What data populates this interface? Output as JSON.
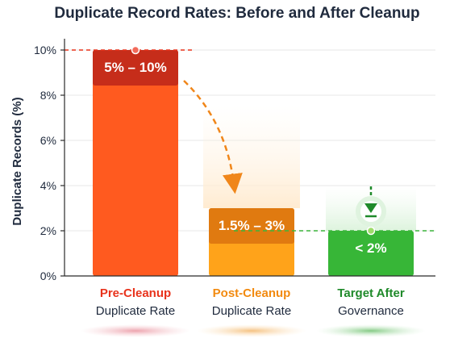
{
  "chart_data": {
    "type": "bar",
    "title": "Duplicate Record Rates: Before and After Cleanup",
    "ylabel": "Duplicate Records (%)",
    "ylim": [
      0,
      10
    ],
    "yticks": [
      0,
      2,
      4,
      6,
      8,
      10
    ],
    "ytick_labels": [
      "0%",
      "2%",
      "4%",
      "6%",
      "8%",
      "10%"
    ],
    "grid": true,
    "bars": [
      {
        "category_line1": "Pre-Cleanup",
        "category_line2": "Duplicate Rate",
        "low": 5,
        "high": 10,
        "range_label": "5% – 10%",
        "color_top": "#c62d1a",
        "color_body": "#ff5a1f",
        "label_color": "#e8331c",
        "has_low_band": true
      },
      {
        "category_line1": "Post-Cleanup",
        "category_line2": "Duplicate Rate",
        "low": 1.5,
        "high": 3,
        "range_label": "1.5% – 3%",
        "color_top": "#e07a10",
        "color_body": "#ffa31a",
        "label_color": "#f28a0f",
        "has_low_band": true
      },
      {
        "category_line1": "Target After",
        "category_line2": "Governance",
        "low": 0,
        "high": 2,
        "range_label": "< 2%",
        "color_top": "#2f9e2f",
        "color_body": "#3cc43c",
        "label_color": "#1f8a2a",
        "has_low_band": false
      }
    ],
    "reference_lines": [
      {
        "value": 10,
        "color": "#e8331c"
      },
      {
        "value": 2,
        "color": "#3cb43c"
      }
    ]
  }
}
